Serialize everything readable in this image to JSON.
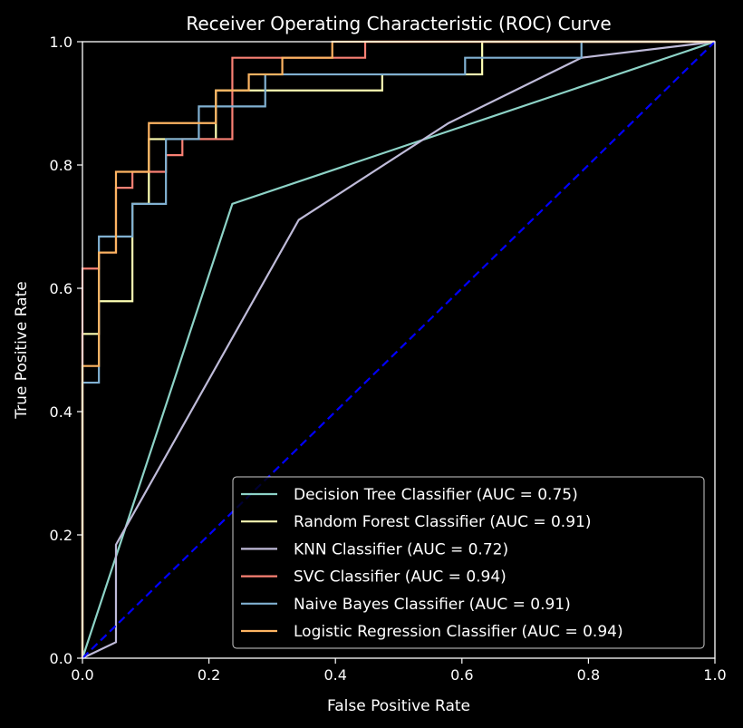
{
  "chart_data": {
    "type": "line",
    "title": "Receiver Operating Characteristic (ROC) Curve",
    "xlabel": "False Positive Rate",
    "ylabel": "True Positive Rate",
    "xlim": [
      0,
      1
    ],
    "ylim": [
      0,
      1
    ],
    "xticks": [
      "0.0",
      "0.2",
      "0.4",
      "0.6",
      "0.8",
      "1.0"
    ],
    "yticks": [
      "0.0",
      "0.2",
      "0.4",
      "0.6",
      "0.8",
      "1.0"
    ],
    "grid": false,
    "legend_position": "lower-right",
    "background": "#000000",
    "series": [
      {
        "name": "Decision Tree Classifier (AUC = 0.75)",
        "color": "#8dd3c7",
        "x": [
          0,
          0.237,
          1
        ],
        "y": [
          0,
          0.737,
          1
        ]
      },
      {
        "name": "Random Forest Classifier (AUC = 0.91)",
        "color": "#feffb3",
        "x": [
          0,
          0,
          0.026,
          0.026,
          0.079,
          0.079,
          0.105,
          0.105,
          0.211,
          0.211,
          0.474,
          0.474,
          0.632,
          0.632,
          1
        ],
        "y": [
          0,
          0.526,
          0.526,
          0.579,
          0.579,
          0.737,
          0.737,
          0.842,
          0.842,
          0.921,
          0.921,
          0.947,
          0.947,
          1,
          1
        ]
      },
      {
        "name": "KNN Classifier (AUC = 0.72)",
        "color": "#bfbbd9",
        "x": [
          0,
          0.053,
          0.053,
          0.342,
          0.579,
          0.789,
          1
        ],
        "y": [
          0,
          0.026,
          0.184,
          0.711,
          0.868,
          0.974,
          1
        ]
      },
      {
        "name": "SVC Classifier (AUC = 0.94)",
        "color": "#fa8174",
        "x": [
          0,
          0,
          0.026,
          0.026,
          0.053,
          0.053,
          0.079,
          0.079,
          0.132,
          0.132,
          0.158,
          0.158,
          0.237,
          0.237,
          0.447,
          0.447,
          1
        ],
        "y": [
          0,
          0.632,
          0.632,
          0.658,
          0.658,
          0.763,
          0.763,
          0.789,
          0.789,
          0.816,
          0.816,
          0.842,
          0.842,
          0.974,
          0.974,
          1,
          1
        ]
      },
      {
        "name": "Naive Bayes Classifier (AUC = 0.91)",
        "color": "#81b1d2",
        "x": [
          0,
          0,
          0.026,
          0.026,
          0.079,
          0.079,
          0.132,
          0.132,
          0.184,
          0.184,
          0.289,
          0.289,
          0.605,
          0.605,
          0.789,
          0.789,
          1
        ],
        "y": [
          0,
          0.447,
          0.447,
          0.684,
          0.684,
          0.737,
          0.737,
          0.842,
          0.842,
          0.895,
          0.895,
          0.947,
          0.947,
          0.974,
          0.974,
          1,
          1
        ]
      },
      {
        "name": "Logistic Regression Classifier (AUC = 0.94)",
        "color": "#fdb462",
        "x": [
          0,
          0,
          0.026,
          0.026,
          0.053,
          0.053,
          0.105,
          0.105,
          0.211,
          0.211,
          0.263,
          0.263,
          0.316,
          0.316,
          0.395,
          0.395,
          1
        ],
        "y": [
          0,
          0.474,
          0.474,
          0.658,
          0.658,
          0.789,
          0.789,
          0.868,
          0.868,
          0.921,
          0.921,
          0.947,
          0.947,
          0.974,
          0.974,
          1,
          1
        ]
      }
    ],
    "reference_line": {
      "type": "diagonal",
      "style": "dashed",
      "color": "#0000ff",
      "x": [
        0,
        1
      ],
      "y": [
        0,
        1
      ]
    }
  }
}
